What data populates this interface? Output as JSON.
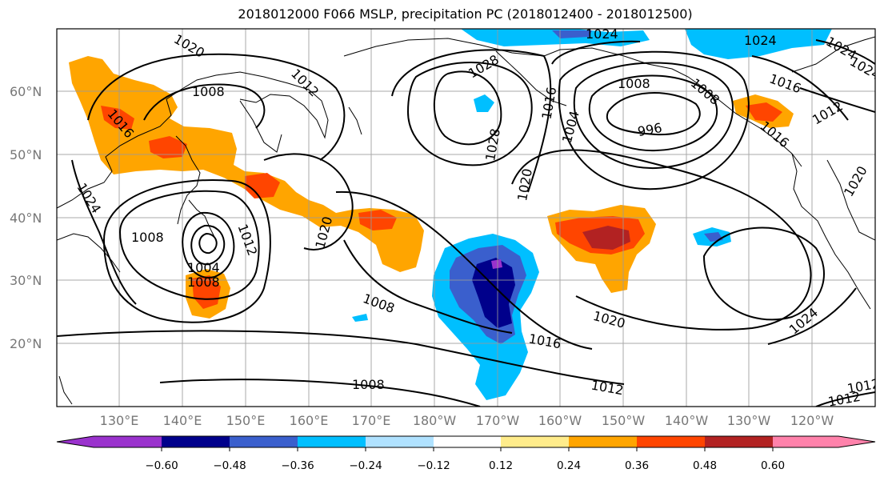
{
  "title": "2018012000 F066 MSLP, precipitation PC (2018012400 - 2018012500)",
  "axes": {
    "lon_labels": [
      "130°E",
      "140°E",
      "150°E",
      "160°E",
      "170°E",
      "180°W",
      "170°W",
      "160°W",
      "150°W",
      "140°W",
      "130°W",
      "120°W"
    ],
    "lat_labels": [
      "60°N",
      "50°N",
      "40°N",
      "30°N",
      "20°N"
    ]
  },
  "colorbar": {
    "colors": [
      "#9a32cd",
      "#00008b",
      "#3a5fcd",
      "#00bfff",
      "#b0e2ff",
      "#ffffff",
      "#ffec8b",
      "#ffa500",
      "#ff4500",
      "#b22222",
      "#ff82ab"
    ],
    "tick_labels": [
      "−0.60",
      "−0.48",
      "−0.36",
      "−0.24",
      "−0.12",
      "0.12",
      "0.24",
      "0.36",
      "0.48",
      "0.60"
    ]
  },
  "isobar_labels": [
    "1008",
    "1016",
    "1024",
    "1020",
    "1012",
    "1028",
    "1024",
    "1020",
    "1028",
    "1024",
    "1008",
    "1004",
    "1016",
    "996",
    "1008",
    "1020",
    "1012",
    "1024",
    "1016",
    "1012",
    "1016",
    "1008",
    "1004",
    "1008",
    "1012",
    "1020",
    "1008",
    "1020",
    "1024",
    "1016",
    "1008",
    "1012",
    "1012",
    "1024"
  ],
  "colors": {
    "shade_purple": "#9a32cd",
    "shade_navy": "#00008b",
    "shade_blue": "#3a5fcd",
    "shade_cyan": "#00bfff",
    "shade_lightblue": "#b0e2ff",
    "shade_yellow": "#ffec8b",
    "shade_orange": "#ffa500",
    "shade_redorange": "#ff4500",
    "shade_firebrick": "#b22222",
    "shade_pink": "#ff82ab"
  }
}
